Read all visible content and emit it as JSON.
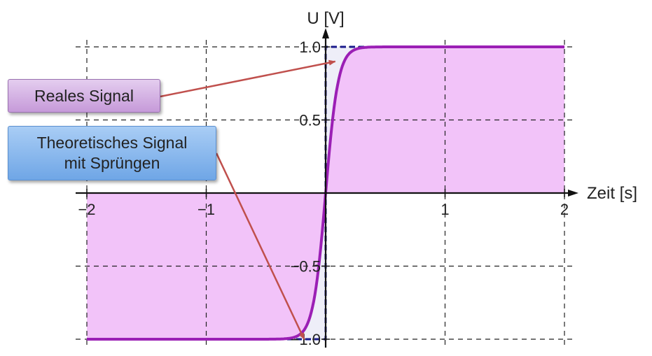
{
  "chart_data": {
    "type": "line",
    "xlabel": "Zeit [s]",
    "ylabel": "U [V]",
    "xlim": [
      -2,
      2
    ],
    "ylim": [
      -1,
      1
    ],
    "x_ticks": [
      -2,
      -1,
      1,
      2
    ],
    "x_tick_labels": [
      "−2",
      "−1",
      "1",
      "2"
    ],
    "y_ticks": [
      1.0,
      0.5,
      -0.5,
      -1.0
    ],
    "y_tick_labels": [
      "1.0",
      "0.5",
      "−0.5",
      "−1.0"
    ],
    "grid": true,
    "series": [
      {
        "name": "Reales Signal",
        "color": "#9b1fb5",
        "style": "solid",
        "fill_color": "#f2c3f9",
        "x": [
          -2,
          -0.4,
          -0.3,
          -0.2,
          -0.15,
          -0.1,
          -0.05,
          0,
          0.05,
          0.1,
          0.15,
          0.2,
          0.3,
          0.4,
          2
        ],
        "y": [
          -1,
          -1,
          -0.995,
          -0.96,
          -0.9,
          -0.75,
          -0.45,
          0,
          0.45,
          0.75,
          0.9,
          0.96,
          0.995,
          1,
          1
        ]
      },
      {
        "name": "Theoretisches Signal mit Sprüngen",
        "color": "#1a1a8c",
        "style": "dashed",
        "x": [
          -2,
          0,
          0,
          2
        ],
        "y": [
          -1,
          -1,
          1,
          1
        ]
      }
    ]
  },
  "annotations": [
    {
      "id": "real",
      "text": "Reales Signal",
      "arrow_color": "#c0504d",
      "target": [
        0.08,
        0.9
      ]
    },
    {
      "id": "theo",
      "text_lines": [
        "Theoretisches Signal",
        "mit Sprüngen"
      ],
      "arrow_color": "#c0504d",
      "target": [
        -0.18,
        -1.0
      ]
    }
  ]
}
